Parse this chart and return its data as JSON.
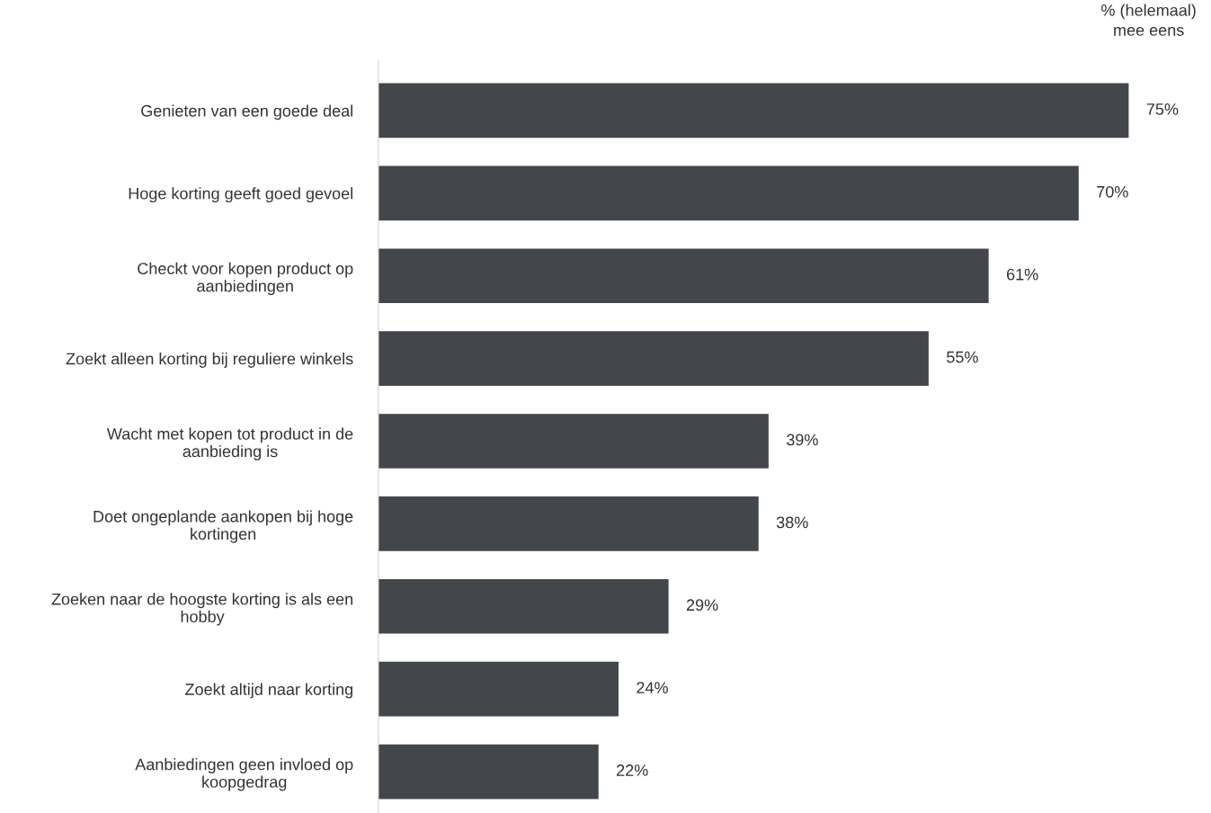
{
  "chart_data": {
    "type": "bar",
    "orientation": "horizontal",
    "categories": [
      "Genieten van een goede deal",
      "Hoge korting geeft goed gevoel",
      "Checkt voor kopen product op\naanbiedingen",
      "Zoekt alleen korting bij reguliere winkels",
      "Wacht met kopen tot product in de\naanbieding is",
      "Doet ongeplande aankopen bij hoge\nkortingen",
      "Zoeken naar de hoogste korting is als een\nhobby",
      "Zoekt altijd naar korting",
      "Aanbiedingen geen invloed op\nkoopgedrag"
    ],
    "values": [
      75,
      70,
      61,
      55,
      39,
      38,
      29,
      24,
      22
    ],
    "value_labels": [
      "75%",
      "70%",
      "61%",
      "55%",
      "39%",
      "38%",
      "29%",
      "24%",
      "22%"
    ],
    "color": "#43464b",
    "tick_labels": "y",
    "grid": false,
    "annotations": [
      "% (helemaal)\nmee eens"
    ]
  }
}
